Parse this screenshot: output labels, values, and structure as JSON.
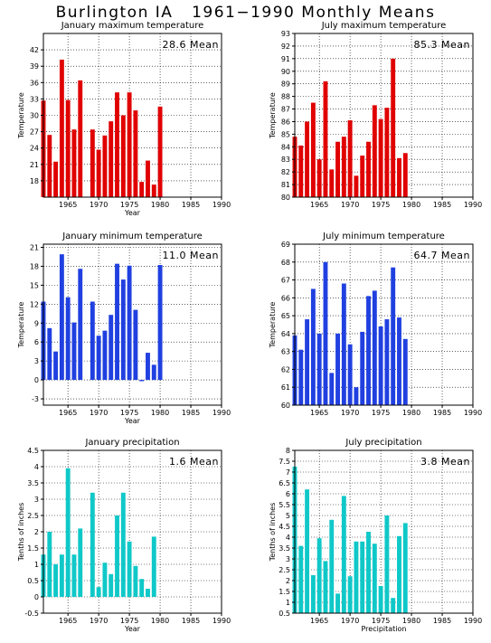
{
  "figure": {
    "title": "Burlington IA   1961−1990 Monthly Means"
  },
  "chart_data": [
    {
      "type": "bar",
      "title": "January maximum temperature",
      "ylabel": "Temperature",
      "xlabel": "Year",
      "mean_label": "28.6 Mean",
      "color": "#e00000",
      "xlim": [
        1961,
        1990
      ],
      "ylim": [
        15,
        45
      ],
      "yticks": [
        18,
        21,
        24,
        27,
        30,
        33,
        36,
        39,
        42
      ],
      "xticks": [
        1965,
        1970,
        1975,
        1980,
        1985,
        1990
      ],
      "grid": true,
      "x": [
        1961,
        1962,
        1963,
        1964,
        1965,
        1966,
        1967,
        1969,
        1970,
        1971,
        1972,
        1973,
        1974,
        1975,
        1976,
        1977,
        1978,
        1979,
        1980
      ],
      "values": [
        32.7,
        26.4,
        21.5,
        40.2,
        32.8,
        27.4,
        36.4,
        27.4,
        23.7,
        26.3,
        28.9,
        34.2,
        30.0,
        34.2,
        30.9,
        17.8,
        21.7,
        17.3,
        31.6
      ]
    },
    {
      "type": "bar",
      "title": "July maximum temperature",
      "ylabel": "Temperature",
      "xlabel": "",
      "mean_label": "85.3 Mean",
      "color": "#e00000",
      "xlim": [
        1961,
        1990
      ],
      "ylim": [
        80,
        93
      ],
      "yticks": [
        80,
        81,
        82,
        83,
        84,
        85,
        86,
        87,
        88,
        89,
        90,
        91,
        92,
        93
      ],
      "xticks": [
        1965,
        1970,
        1975,
        1980,
        1985,
        1990
      ],
      "grid": true,
      "x": [
        1961,
        1962,
        1963,
        1964,
        1965,
        1966,
        1967,
        1968,
        1969,
        1970,
        1971,
        1972,
        1973,
        1974,
        1975,
        1976,
        1977,
        1978,
        1979
      ],
      "values": [
        84.8,
        84.1,
        86.0,
        87.5,
        83.0,
        89.2,
        82.2,
        84.4,
        84.8,
        86.1,
        81.7,
        83.3,
        84.4,
        87.3,
        86.2,
        87.1,
        91.0,
        83.1,
        83.5
      ]
    },
    {
      "type": "bar",
      "title": "January minimum temperature",
      "ylabel": "Temperature",
      "xlabel": "Year",
      "mean_label": "11.0 Mean",
      "color": "#2040e0",
      "xlim": [
        1961,
        1990
      ],
      "ylim": [
        -4,
        21.5
      ],
      "yticks": [
        -3,
        0,
        3,
        6,
        9,
        12,
        15,
        18,
        21
      ],
      "xticks": [
        1965,
        1970,
        1975,
        1980,
        1985,
        1990
      ],
      "grid": true,
      "x": [
        1961,
        1962,
        1963,
        1964,
        1965,
        1966,
        1967,
        1969,
        1970,
        1971,
        1972,
        1973,
        1974,
        1975,
        1976,
        1977,
        1978,
        1979,
        1980
      ],
      "values": [
        12.4,
        8.2,
        4.5,
        19.9,
        13.1,
        9.1,
        17.6,
        12.4,
        7.0,
        7.8,
        10.3,
        18.4,
        15.9,
        18.1,
        11.1,
        -0.2,
        4.3,
        2.4,
        18.2
      ]
    },
    {
      "type": "bar",
      "title": "July minimum temperature",
      "ylabel": "Temperature",
      "xlabel": "",
      "mean_label": "64.7 Mean",
      "color": "#2040e0",
      "xlim": [
        1961,
        1990
      ],
      "ylim": [
        60,
        69
      ],
      "yticks": [
        60,
        61,
        62,
        63,
        64,
        65,
        66,
        67,
        68,
        69
      ],
      "xticks": [
        1965,
        1970,
        1975,
        1980,
        1985,
        1990
      ],
      "grid": true,
      "x": [
        1961,
        1962,
        1963,
        1964,
        1965,
        1966,
        1967,
        1968,
        1969,
        1970,
        1971,
        1972,
        1973,
        1974,
        1975,
        1976,
        1977,
        1978,
        1979
      ],
      "values": [
        63.9,
        63.1,
        64.8,
        66.5,
        64.0,
        68.0,
        61.8,
        64.0,
        66.8,
        63.4,
        61.0,
        64.1,
        66.1,
        66.4,
        64.4,
        64.8,
        67.7,
        64.9,
        63.7
      ]
    },
    {
      "type": "bar",
      "title": "January precipitation",
      "ylabel": "Tenths of inches",
      "xlabel": "Year",
      "mean_label": "1.6 Mean",
      "color": "#10c8c8",
      "xlim": [
        1961,
        1990
      ],
      "ylim": [
        -0.5,
        4.5
      ],
      "yticks": [
        -0.5,
        0,
        0.5,
        1,
        1.5,
        2,
        2.5,
        3,
        3.5,
        4,
        4.5
      ],
      "xticks": [
        1965,
        1970,
        1975,
        1980,
        1985,
        1990
      ],
      "grid": true,
      "x": [
        1961,
        1962,
        1963,
        1964,
        1965,
        1966,
        1967,
        1969,
        1970,
        1971,
        1972,
        1973,
        1974,
        1975,
        1976,
        1977,
        1978,
        1979
      ],
      "values": [
        1.3,
        2.0,
        1.0,
        1.3,
        3.95,
        1.3,
        2.1,
        3.2,
        0.3,
        1.05,
        0.7,
        2.5,
        3.2,
        1.7,
        0.95,
        0.55,
        0.25,
        1.85
      ]
    },
    {
      "type": "bar",
      "title": "July precipitation",
      "ylabel": "Tenths of inches",
      "xlabel": "Precipitation",
      "mean_label": "3.8 Mean",
      "color": "#10c8c8",
      "xlim": [
        1961,
        1990
      ],
      "ylim": [
        0.5,
        8
      ],
      "yticks": [
        0.5,
        1,
        1.5,
        2,
        2.5,
        3,
        3.5,
        4,
        4.5,
        5,
        5.5,
        6,
        6.5,
        7,
        7.5,
        8
      ],
      "xticks": [
        1965,
        1970,
        1975,
        1980,
        1985,
        1990
      ],
      "grid": true,
      "x": [
        1961,
        1962,
        1963,
        1964,
        1965,
        1966,
        1967,
        1968,
        1969,
        1970,
        1971,
        1972,
        1973,
        1974,
        1975,
        1976,
        1977,
        1978,
        1979
      ],
      "values": [
        7.25,
        3.6,
        6.2,
        2.25,
        3.95,
        2.9,
        4.8,
        1.4,
        5.9,
        2.2,
        3.8,
        3.8,
        4.25,
        3.7,
        1.75,
        5.0,
        1.2,
        4.05,
        4.65
      ]
    }
  ]
}
